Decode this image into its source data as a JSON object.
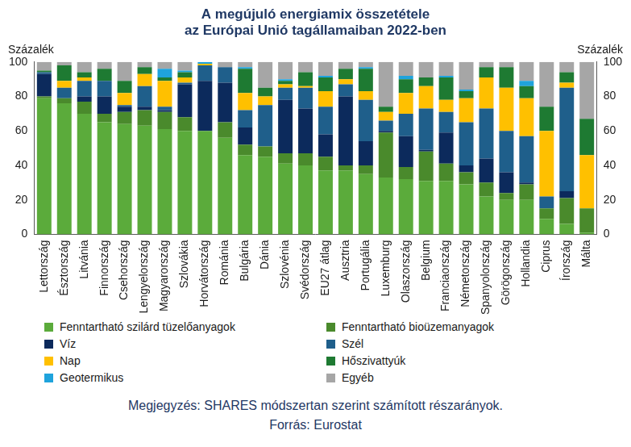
{
  "chart_data": {
    "type": "bar",
    "title": [
      "A megújuló energiamix összetétele",
      "az Európai Unió tagállamaiban 2022-ben"
    ],
    "ylabel": "Százalék",
    "y2label": "Százalék",
    "note": "Megjegyzés: SHARES módszertan szerint számított részarányok.",
    "source": "Forrás: Eurostat",
    "stacked": true,
    "grid": false,
    "legend": "bottom",
    "ylim": [
      0,
      100
    ],
    "yticks": [
      0,
      20,
      40,
      60,
      80,
      100
    ],
    "y2lim": [
      0,
      100
    ],
    "y2ticks": [
      0,
      20,
      40,
      60,
      80,
      100
    ],
    "categories": [
      "Lettország",
      "Észtország",
      "Litvánia",
      "Finnország",
      "Csehország",
      "Lengyelország",
      "Magyarország",
      "Szlovákia",
      "Horvátország",
      "Románia",
      "Bulgária",
      "Dánia",
      "Szlovénia",
      "Svédország",
      "EU27 átlag",
      "Ausztria",
      "Portugália",
      "Luxemburg",
      "Olaszország",
      "Belgium",
      "Franciaország",
      "Németország",
      "Spanyolország",
      "Görögország",
      "Hollandia",
      "Ciprus",
      "Írország",
      "Málta"
    ],
    "series": [
      {
        "name": "Fenntartható szilárd tüzelőanyagok",
        "color": "#5bab3b",
        "values": [
          79,
          76,
          70,
          65,
          64,
          63,
          61,
          60,
          60,
          56,
          46,
          45,
          41,
          40,
          37,
          37,
          35,
          33,
          32,
          31,
          31,
          29,
          22,
          20,
          20,
          9,
          6,
          1
        ]
      },
      {
        "name": "Fenntartható bioüzemanyagok",
        "color": "#4a8a2c",
        "values": [
          1,
          3,
          7,
          5,
          7,
          9,
          10,
          8,
          0,
          9,
          6,
          6,
          6,
          7,
          8,
          3,
          5,
          26,
          7,
          17,
          10,
          7,
          8,
          4,
          9,
          6,
          15,
          14
        ]
      },
      {
        "name": "Víz",
        "color": "#0c2a5c",
        "values": [
          13,
          0,
          3,
          10,
          3,
          2,
          1,
          19,
          29,
          23,
          10,
          0,
          31,
          26,
          13,
          40,
          14,
          1,
          18,
          1,
          18,
          4,
          14,
          12,
          1,
          0,
          4,
          0
        ]
      },
      {
        "name": "Szél",
        "color": "#1f5f8b",
        "values": [
          1,
          6,
          9,
          9,
          1,
          12,
          2,
          1,
          9,
          9,
          10,
          24,
          7,
          12,
          16,
          7,
          24,
          6,
          13,
          24,
          12,
          25,
          29,
          24,
          27,
          7,
          60,
          0
        ]
      },
      {
        "name": "Nap",
        "color": "#ffc000",
        "values": [
          0,
          4,
          2,
          0,
          7,
          7,
          15,
          3,
          1,
          0,
          10,
          5,
          2,
          1,
          9,
          3,
          5,
          5,
          12,
          13,
          7,
          14,
          18,
          25,
          22,
          38,
          3,
          31
        ]
      },
      {
        "name": "Hőszivattyúk",
        "color": "#1e7a32",
        "values": [
          1,
          9,
          3,
          7,
          7,
          4,
          2,
          3,
          0,
          0,
          14,
          5,
          2,
          8,
          8,
          6,
          13,
          3,
          8,
          5,
          13,
          4,
          6,
          12,
          7,
          14,
          6,
          21
        ]
      },
      {
        "name": "Geotermikus",
        "color": "#1fa3dc",
        "values": [
          0,
          0,
          0,
          0,
          0,
          0,
          5,
          1,
          1,
          0,
          1,
          0,
          1,
          0,
          1,
          0,
          1,
          0,
          2,
          0,
          1,
          1,
          0,
          0,
          3,
          0,
          0,
          0
        ]
      },
      {
        "name": "Egyéb",
        "color": "#a6a6a6",
        "values": [
          5,
          2,
          6,
          4,
          11,
          3,
          4,
          5,
          0,
          3,
          3,
          15,
          10,
          6,
          8,
          4,
          3,
          26,
          8,
          9,
          8,
          16,
          3,
          3,
          11,
          26,
          6,
          33
        ]
      }
    ]
  }
}
